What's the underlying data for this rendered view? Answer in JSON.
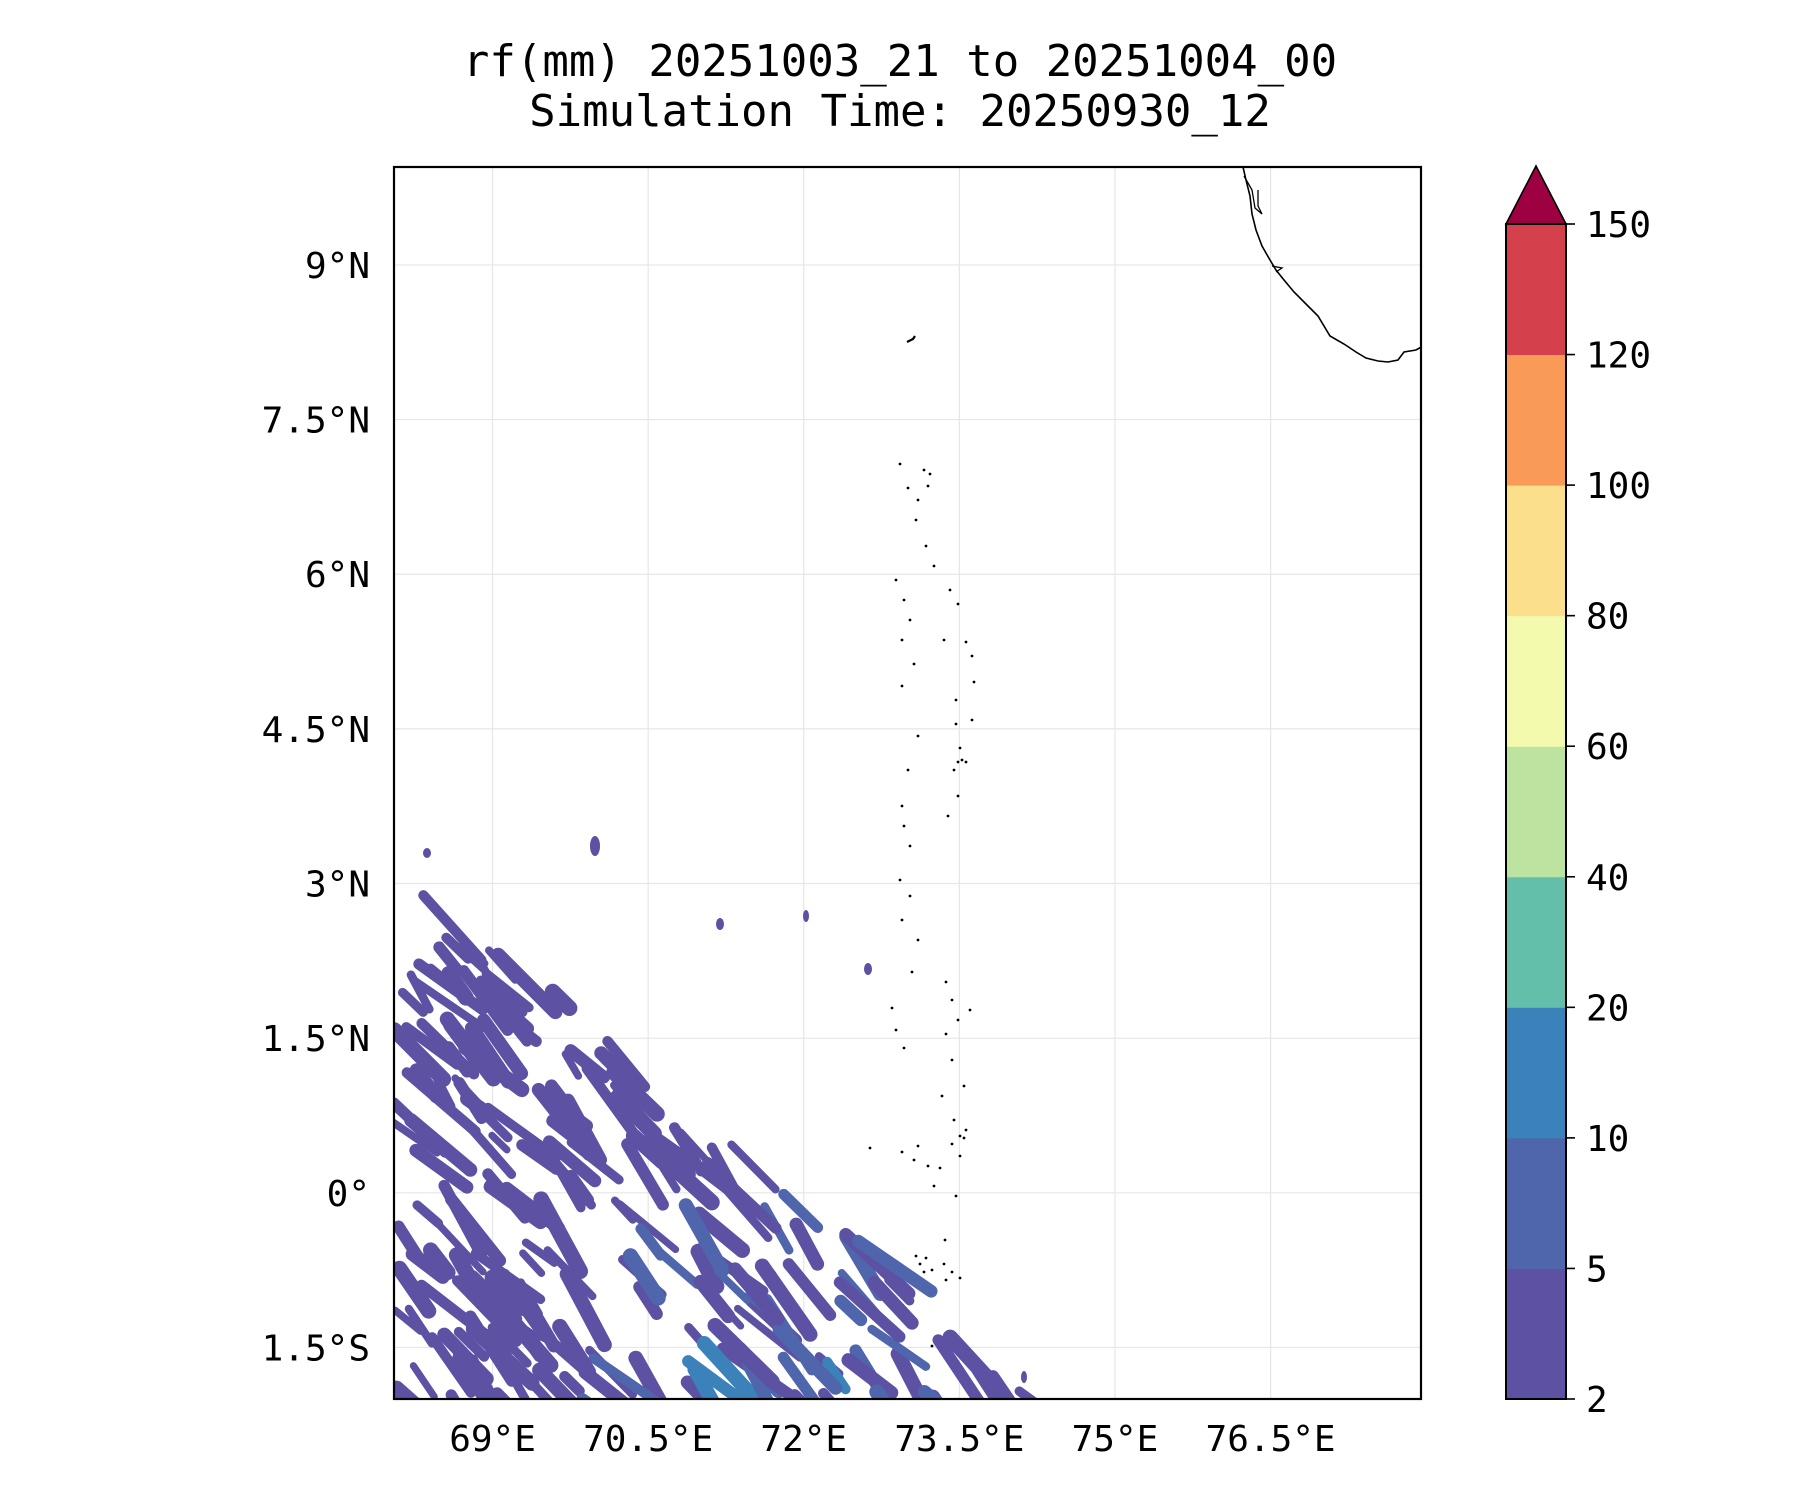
{
  "chart_data": {
    "type": "heatmap",
    "title": "rf(mm) 20251003_21 to 20251004_00",
    "subtitle": "Simulation Time: 20250930_12",
    "variable": "rf",
    "units": "mm",
    "map": {
      "lon_range": [
        68.05,
        77.95
      ],
      "lat_range": [
        -2.0,
        9.95
      ],
      "x_ticks": [
        69,
        70.5,
        72,
        73.5,
        75,
        76.5
      ],
      "x_tick_labels": [
        "69°E",
        "70.5°E",
        "72°E",
        "73.5°E",
        "75°E",
        "76.5°E"
      ],
      "y_ticks": [
        9,
        7.5,
        6,
        4.5,
        3,
        1.5,
        0,
        -1.5
      ],
      "y_tick_labels": [
        "9°N",
        "7.5°N",
        "6°N",
        "4.5°N",
        "3°N",
        "1.5°N",
        "0°",
        "1.5°S"
      ],
      "grid": true,
      "coastlines": true
    },
    "colorbar": {
      "levels": [
        2,
        5,
        10,
        20,
        40,
        60,
        80,
        100,
        120,
        150
      ],
      "level_labels": [
        "2",
        "5",
        "10",
        "20",
        "40",
        "60",
        "80",
        "100",
        "120",
        "150"
      ],
      "colors": [
        "#5c51a3",
        "#4f65ac",
        "#3b81ba",
        "#64bfaa",
        "#bde3a0",
        "#f4faad",
        "#fbdf8c",
        "#f99b56",
        "#d5404d"
      ],
      "extend_color": "#9e0142",
      "extend": "max",
      "placement": "right"
    },
    "rain_regions": [
      {
        "level": "2-5",
        "area": "southwest quadrant, roughly 68°E–74°E, 2.8°N–2°S, streaky bands oriented northwest to southeast"
      },
      {
        "level": "5-10",
        "area": "embedded streaks near 70.5°E–73.5°E, 0.5°S–2°S"
      },
      {
        "level": "10-20",
        "area": "small cores near 70°E–71°E, 1.5°S–2°S"
      }
    ]
  }
}
